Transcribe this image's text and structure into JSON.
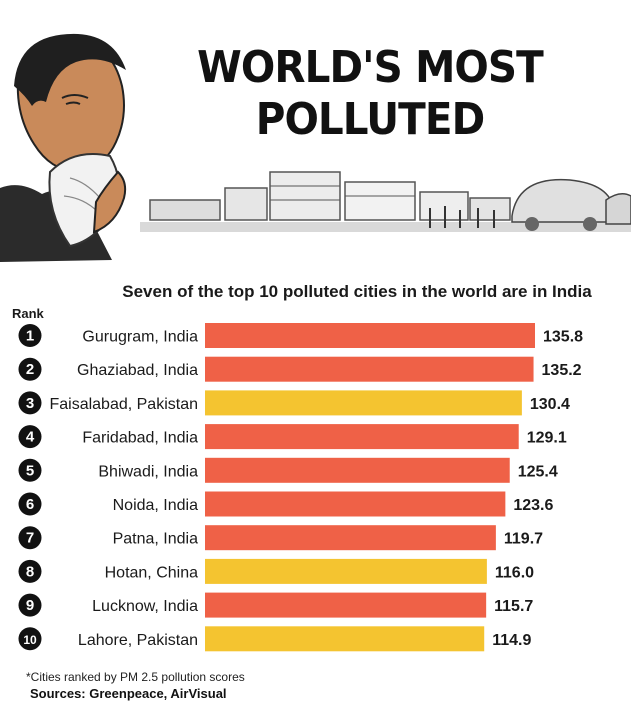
{
  "header": {
    "title_line1": "WORLD'S MOST",
    "title_line2": "POLLUTED",
    "subtitle": "Seven of the top 10 polluted cities in the world are in India"
  },
  "rank_heading": "Rank",
  "footnote": "*Cities ranked by PM 2.5 pollution scores",
  "sources": "Sources: Greenpeace, AirVisual",
  "colors": {
    "india": "#ef6147",
    "pakistan": "#f4c430",
    "china": "#f4c430"
  },
  "chart_data": {
    "type": "bar",
    "orientation": "horizontal",
    "title": "Seven of the top 10 polluted cities in the world are in India",
    "ranks": [
      "1",
      "2",
      "3",
      "4",
      "5",
      "6",
      "7",
      "8",
      "9",
      "10"
    ],
    "categories": [
      "Gurugram, India",
      "Ghaziabad, India",
      "Faisalabad, Pakistan",
      "Faridabad, India",
      "Bhiwadi, India",
      "Noida, India",
      "Patna, India",
      "Hotan, China",
      "Lucknow, India",
      "Lahore, Pakistan"
    ],
    "countries": [
      "India",
      "India",
      "Pakistan",
      "India",
      "India",
      "India",
      "India",
      "China",
      "India",
      "Pakistan"
    ],
    "values": [
      135.8,
      135.2,
      130.4,
      129.1,
      125.4,
      123.6,
      119.7,
      116.0,
      115.7,
      114.9
    ],
    "value_labels": [
      "135.8",
      "135.2",
      "130.4",
      "129.1",
      "125.4",
      "123.6",
      "119.7",
      "116.0",
      "115.7",
      "114.9"
    ],
    "xlim": [
      0,
      135.8
    ],
    "grid": false,
    "legend": "none"
  }
}
